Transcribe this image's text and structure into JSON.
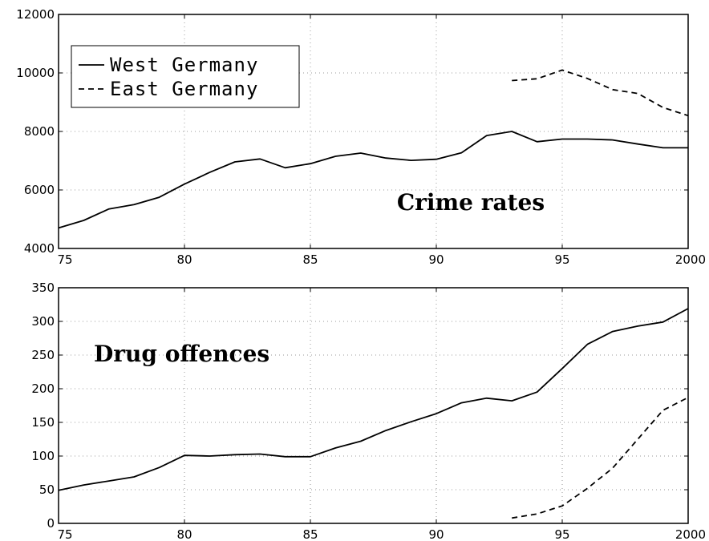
{
  "chart_data": [
    {
      "type": "line",
      "annotation": "Crime rates",
      "xlim": [
        1975,
        2000
      ],
      "ylim": [
        4000,
        12000
      ],
      "x_ticks": [
        {
          "value": 1975,
          "label": "75"
        },
        {
          "value": 1980,
          "label": "80"
        },
        {
          "value": 1985,
          "label": "85"
        },
        {
          "value": 1990,
          "label": "90"
        },
        {
          "value": 1995,
          "label": "95"
        },
        {
          "value": 2000,
          "label": "2000"
        }
      ],
      "y_ticks": [
        4000,
        6000,
        8000,
        10000,
        12000
      ],
      "grid": true,
      "legend": {
        "placement": "top-left"
      },
      "series": [
        {
          "name": "West Germany",
          "style": "solid",
          "x": [
            1975,
            1976,
            1977,
            1978,
            1979,
            1980,
            1981,
            1982,
            1983,
            1984,
            1985,
            1986,
            1987,
            1988,
            1989,
            1990,
            1991,
            1992,
            1993,
            1994,
            1995,
            1996,
            1997,
            1998,
            1999,
            2000
          ],
          "values": [
            4700,
            4960,
            5350,
            5500,
            5750,
            6200,
            6600,
            6960,
            7060,
            6760,
            6900,
            7150,
            7260,
            7090,
            7010,
            7050,
            7270,
            7860,
            8000,
            7650,
            7740,
            7740,
            7710,
            7570,
            7440,
            7440
          ]
        },
        {
          "name": "East Germany",
          "style": "dashed",
          "x": [
            1993,
            1994,
            1995,
            1996,
            1997,
            1998,
            1999,
            2000
          ],
          "values": [
            9740,
            9800,
            10100,
            9810,
            9430,
            9300,
            8820,
            8540
          ]
        }
      ]
    },
    {
      "type": "line",
      "annotation": "Drug offences",
      "xlim": [
        1975,
        2000
      ],
      "ylim": [
        0,
        350
      ],
      "x_ticks": [
        {
          "value": 1975,
          "label": "75"
        },
        {
          "value": 1980,
          "label": "80"
        },
        {
          "value": 1985,
          "label": "85"
        },
        {
          "value": 1990,
          "label": "90"
        },
        {
          "value": 1995,
          "label": "95"
        },
        {
          "value": 2000,
          "label": "2000"
        }
      ],
      "y_ticks": [
        0,
        50,
        100,
        150,
        200,
        250,
        300,
        350
      ],
      "grid": true,
      "series": [
        {
          "name": "West Germany",
          "style": "solid",
          "x": [
            1975,
            1976,
            1977,
            1978,
            1979,
            1980,
            1981,
            1982,
            1983,
            1984,
            1985,
            1986,
            1987,
            1988,
            1989,
            1990,
            1991,
            1992,
            1993,
            1994,
            1995,
            1996,
            1997,
            1998,
            1999,
            2000
          ],
          "values": [
            49,
            57,
            63,
            69,
            83,
            101,
            100,
            102,
            103,
            99,
            99,
            112,
            122,
            138,
            151,
            163,
            179,
            186,
            182,
            195,
            230,
            266,
            285,
            293,
            299,
            319
          ]
        },
        {
          "name": "East Germany",
          "style": "dashed",
          "x": [
            1993,
            1994,
            1995,
            1996,
            1997,
            1998,
            1999,
            2000
          ],
          "values": [
            8,
            14,
            26,
            52,
            82,
            125,
            168,
            187
          ]
        }
      ]
    }
  ]
}
